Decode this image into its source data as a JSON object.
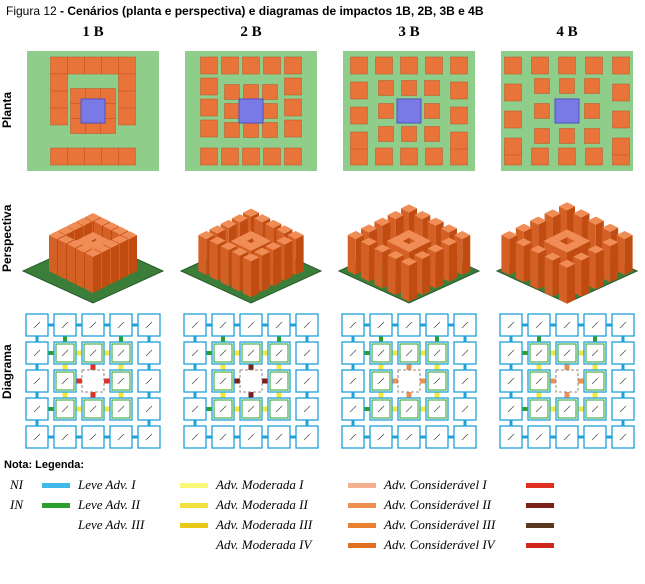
{
  "caption_prefix": "Figura 12 ",
  "caption_bold": "- Cenários (planta e perspectiva) e diagramas de impactos 1B, 2B, 3B e 4B",
  "cols": [
    "1 B",
    "2 B",
    "3 B",
    "4 B"
  ],
  "rows": [
    "Planta",
    "Perspectiva",
    "Diagrama"
  ],
  "nota": "Nota: Legenda:",
  "colors": {
    "ground": "#8fce8a",
    "ground_dark": "#3a7e3a",
    "building_tall": "#e8743a",
    "building_tall_side": "#b84f28",
    "building_tall_top": "#f08c55",
    "center": "#7a7ae6",
    "center_side": "#3030c0",
    "diag_border": "#1fa0d8",
    "diag_green": "#2aa02a",
    "diag_yellow": "#f5e838",
    "diag_yellow_dark": "#e8c818",
    "diag_red": "#e03020",
    "diag_darkred": "#7a2018",
    "diag_salmon": "#f4b090",
    "diag_orange": "#f09050",
    "diag_orange2": "#e88030",
    "diag_orange3": "#e07020"
  },
  "plan_config": {
    "1B": {
      "outer_gap": 0,
      "mid_gap": 0
    },
    "2B": {
      "outer_gap": 4,
      "mid_gap": 4
    },
    "3B": {
      "outer_gap": 8,
      "mid_gap": 8
    },
    "4B": {
      "outer_gap": 10,
      "mid_gap": 10
    }
  },
  "legend": {
    "col1": [
      {
        "abbr": "NI",
        "color": "#40b8e8",
        "label": "Leve Adv. I"
      },
      {
        "abbr": "IN",
        "color": "#2aa02a",
        "label": "Leve Adv. II"
      },
      {
        "abbr": "",
        "color": "",
        "label": "Leve Adv. III"
      }
    ],
    "col1_swatch2": [
      "#f8f878",
      "#f0e040",
      "#e8c818"
    ],
    "col2": [
      {
        "label": "Adv. Moderada I",
        "color": "#f4b090"
      },
      {
        "label": "Adv. Moderada II",
        "color": "#f09050"
      },
      {
        "label": "Adv. Moderada III",
        "color": "#e88030"
      },
      {
        "label": "Adv. Moderada IV",
        "color": "#e07020"
      }
    ],
    "col3": [
      {
        "label": "Adv. Considerável I",
        "color": "#e03020"
      },
      {
        "label": "Adv. Considerável II",
        "color": "#7a2018"
      },
      {
        "label": "Adv. Considerável III",
        "color": "#5a3820"
      },
      {
        "label": "Adv. Considerável IV",
        "color": "#d02818"
      }
    ]
  }
}
